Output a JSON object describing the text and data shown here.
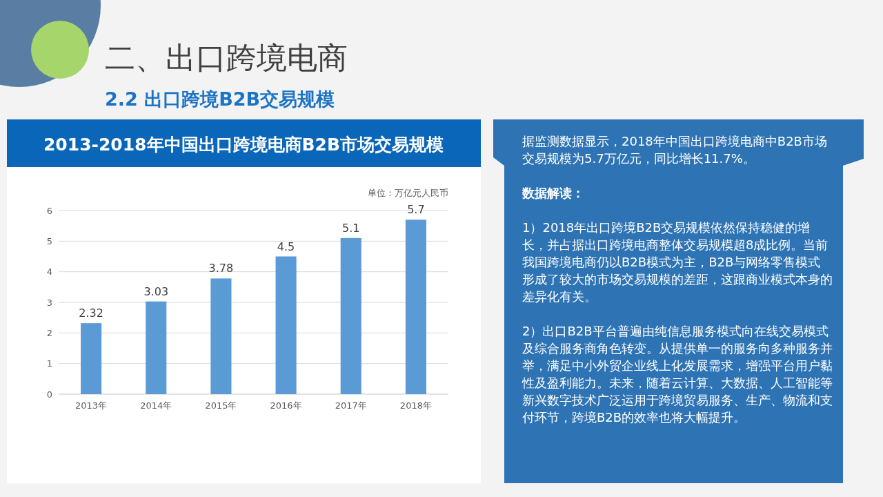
{
  "chart_data": {
    "type": "bar",
    "title": "2013-2018年中国出口跨境电商B2B市场交易规模",
    "ylabel": "单位：万亿元人民币",
    "categories": [
      "2013年",
      "2014年",
      "2015年",
      "2016年",
      "2017年",
      "2018年"
    ],
    "values": [
      2.32,
      3.03,
      3.78,
      4.5,
      5.1,
      5.7
    ],
    "color": "#5b9bd5",
    "ylim": [
      0,
      6
    ],
    "yticks": [
      0,
      1,
      2,
      3,
      4,
      5,
      6
    ],
    "grid": "y",
    "data_labels": true,
    "annotations": [
      "二、出口跨境电商",
      "2.2 出口跨境B2B交易规模",
      "据监测数据显示，2018年中国出口跨境电商中B2B市场交易规模为5.7万亿元，同比增长11.7%。",
      "数据解读：",
      "1）2018年出口跨境B2B交易规模依然保持稳健的增长，并占据出口跨境电商整体交易规模超8成比例。当前我国跨境电商仍以B2B模式为主，B2B与网络零售模式形成了较大的市场交易规模的差距，这跟商业模式本身的差异化有关。",
      "2）出口B2B平台普遍由纯信息服务模式向在线交易模式及综合服务商角色转变。从提供单一的服务向多种服务并举，满足中小外贸企业线上化发展需求，增强平台用户黏性及盈利能力。未来，随着云计算、大数据、人工智能等新兴数字技术广泛运用于跨境贸易服务、生产、物流和支付环节，跨境B2B的效率也将大幅提升。"
    ]
  }
}
